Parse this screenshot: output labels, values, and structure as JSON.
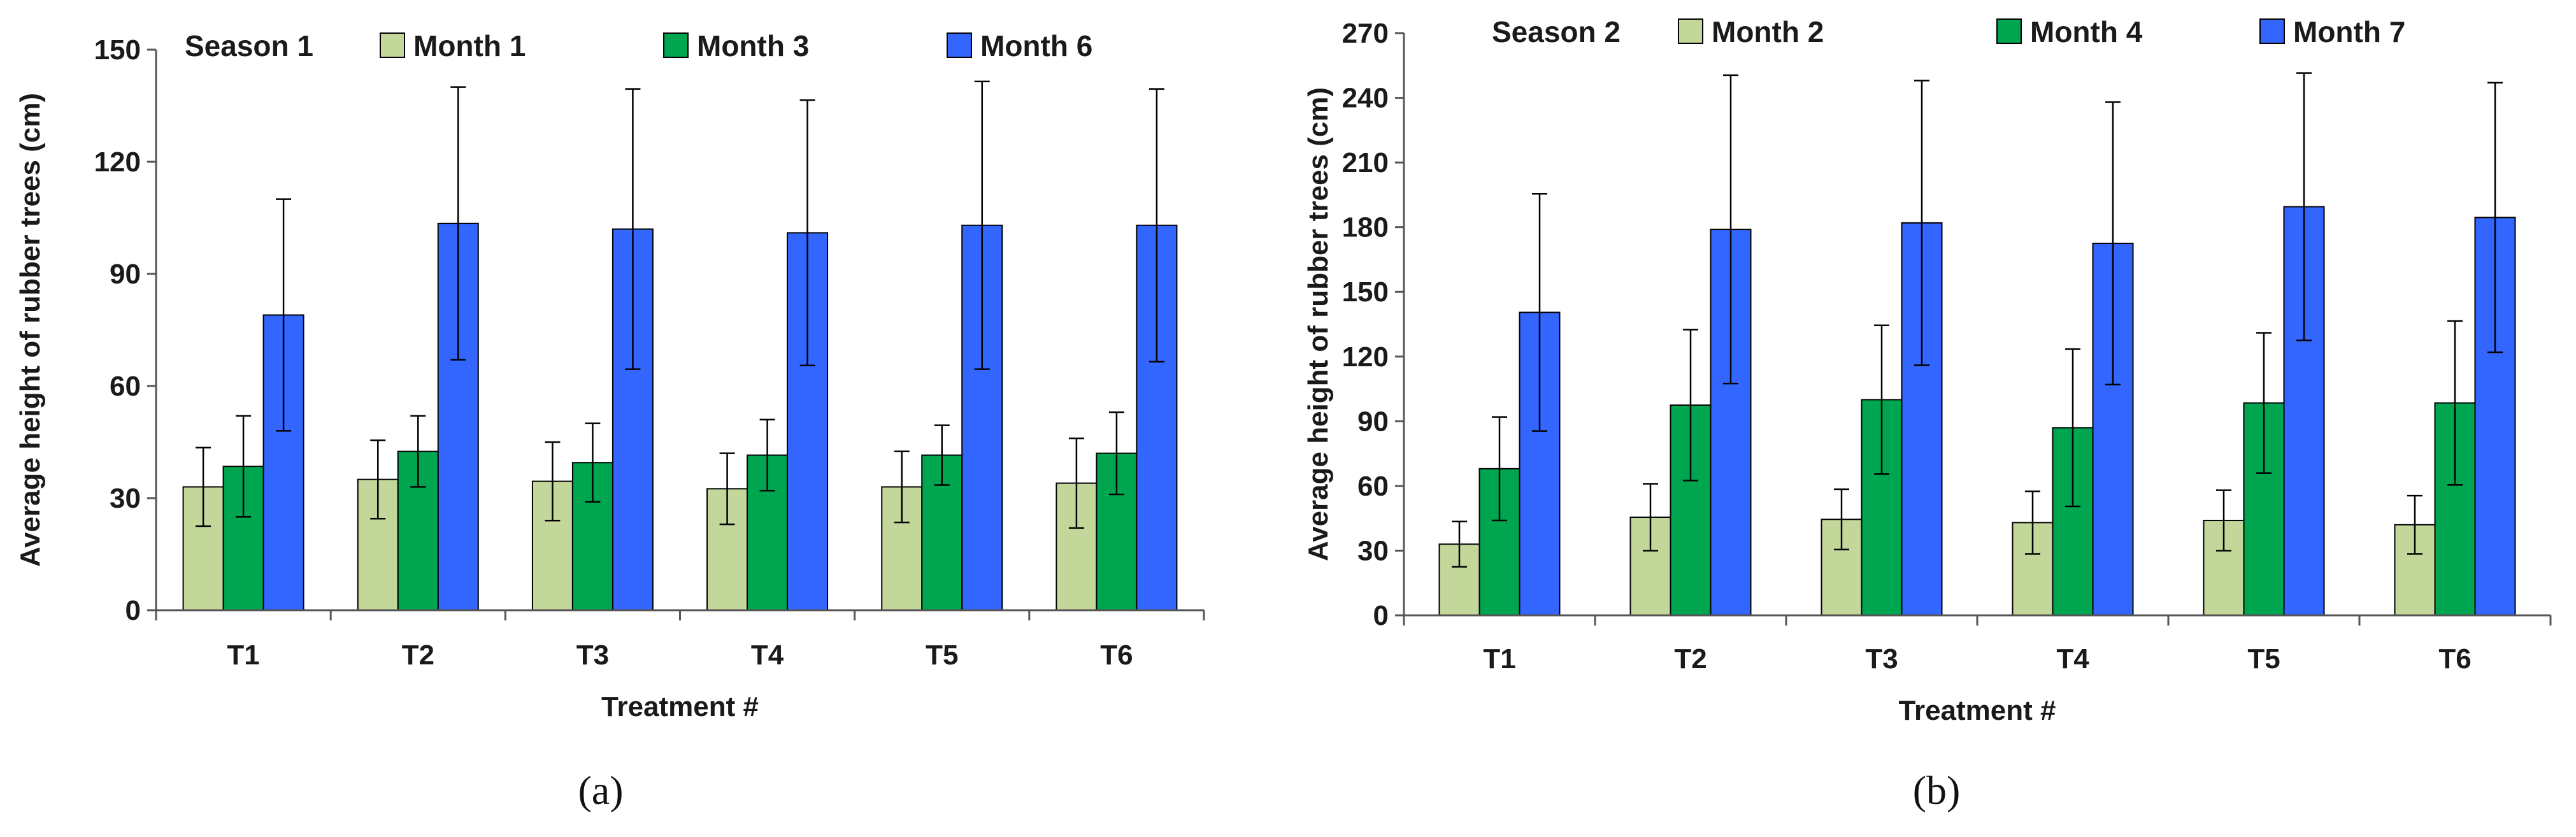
{
  "colors": {
    "Month 1": "#c4d79b",
    "Month 3": "#00a550",
    "Month 6": "#3366ff",
    "Month 2": "#c4d79b",
    "Month 4": "#00a550",
    "Month 7": "#3366ff"
  },
  "chart_data": [
    {
      "type": "bar",
      "panel_label": "(a)",
      "season": "Season 1",
      "xlabel": "Treatment #",
      "ylabel": "Average height of rubber trees (cm)",
      "ylim": [
        0,
        150
      ],
      "yticks": [
        0,
        30,
        60,
        90,
        120,
        150
      ],
      "legend_position": "top",
      "grid": false,
      "categories": [
        "T1",
        "T2",
        "T3",
        "T4",
        "T5",
        "T6"
      ],
      "series": [
        {
          "name": "Month 1",
          "values": [
            33,
            35,
            34.5,
            32.5,
            33,
            34
          ],
          "error": [
            10.5,
            10.5,
            10.5,
            9.5,
            9.5,
            12
          ]
        },
        {
          "name": "Month 3",
          "values": [
            38.5,
            42.5,
            39.5,
            41.5,
            41.5,
            42
          ],
          "error": [
            13.5,
            9.5,
            10.5,
            9.5,
            8,
            11
          ]
        },
        {
          "name": "Month 6",
          "values": [
            79,
            103.5,
            102,
            101,
            103,
            103
          ],
          "error": [
            31,
            36.5,
            37.5,
            35.5,
            38.5,
            36.5
          ]
        }
      ]
    },
    {
      "type": "bar",
      "panel_label": "(b)",
      "season": "Season 2",
      "xlabel": "Treatment #",
      "ylabel": "Average height of rubber trees (cm)",
      "ylim": [
        0,
        270
      ],
      "yticks": [
        0,
        30,
        60,
        90,
        120,
        150,
        180,
        210,
        240,
        270
      ],
      "legend_position": "top",
      "grid": false,
      "categories": [
        "T1",
        "T2",
        "T3",
        "T4",
        "T5",
        "T6"
      ],
      "series": [
        {
          "name": "Month 2",
          "values": [
            33,
            45.5,
            44.5,
            43,
            44,
            42
          ],
          "error": [
            10.5,
            15.5,
            14,
            14.5,
            14,
            13.5
          ]
        },
        {
          "name": "Month 4",
          "values": [
            68,
            97.5,
            100,
            87,
            98.5,
            98.5
          ],
          "error": [
            24,
            35,
            34.5,
            36.5,
            32.5,
            38
          ]
        },
        {
          "name": "Month 7",
          "values": [
            140.5,
            179,
            182,
            172.5,
            189.5,
            184.5
          ],
          "error": [
            55,
            71.5,
            66,
            65.5,
            62,
            62.5
          ]
        }
      ]
    }
  ]
}
